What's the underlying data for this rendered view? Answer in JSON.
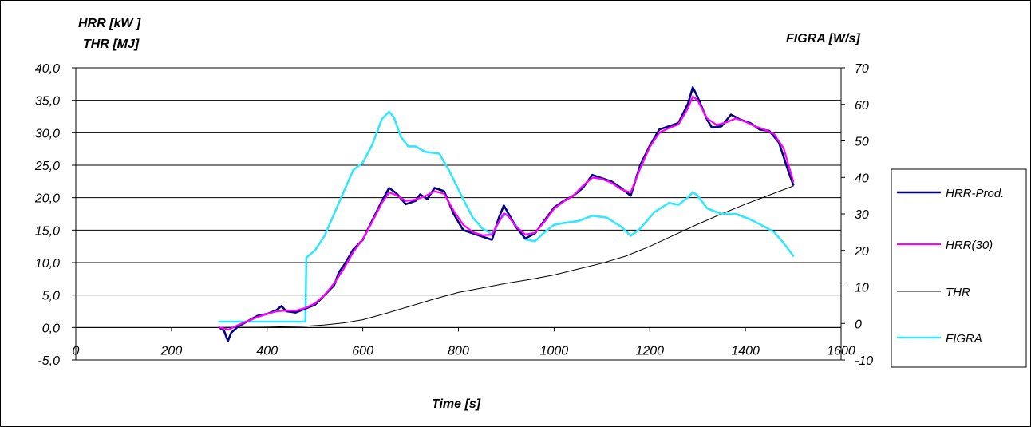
{
  "chart_data": {
    "type": "line",
    "title": "",
    "xlabel": "Time [s]",
    "ylabel_left": [
      "HRR [kW ]",
      "THR [MJ]"
    ],
    "ylabel_right": "FIGRA [W/s]",
    "xlim": [
      0,
      1600
    ],
    "ylim_left": [
      -5,
      40
    ],
    "ylim_right": [
      -10,
      70
    ],
    "x_ticks": [
      "0",
      "200",
      "400",
      "600",
      "800",
      "1000",
      "1200",
      "1400",
      "1600"
    ],
    "y_left_ticks": [
      "-5,0",
      "0,0",
      "5,0",
      "10,0",
      "15,0",
      "20,0",
      "25,0",
      "30,0",
      "35,0",
      "40,0"
    ],
    "y_right_ticks": [
      "-10",
      "0",
      "10",
      "20",
      "30",
      "40",
      "50",
      "60",
      "70"
    ],
    "grid": "horizontal",
    "legend_position": "right",
    "series": [
      {
        "name": "HRR-Prod.",
        "axis": "left",
        "color": "#000080",
        "points": [
          [
            300,
            0.0
          ],
          [
            310,
            -0.5
          ],
          [
            318,
            -2.1
          ],
          [
            325,
            -0.8
          ],
          [
            340,
            0.2
          ],
          [
            360,
            1.0
          ],
          [
            380,
            1.8
          ],
          [
            400,
            2.1
          ],
          [
            420,
            2.7
          ],
          [
            430,
            3.3
          ],
          [
            440,
            2.5
          ],
          [
            460,
            2.3
          ],
          [
            480,
            2.9
          ],
          [
            500,
            3.5
          ],
          [
            520,
            5.0
          ],
          [
            540,
            6.5
          ],
          [
            550,
            8.5
          ],
          [
            560,
            9.5
          ],
          [
            580,
            12.0
          ],
          [
            600,
            13.5
          ],
          [
            620,
            16.5
          ],
          [
            640,
            19.5
          ],
          [
            655,
            21.5
          ],
          [
            670,
            20.7
          ],
          [
            690,
            19.0
          ],
          [
            710,
            19.5
          ],
          [
            720,
            20.5
          ],
          [
            735,
            19.8
          ],
          [
            750,
            21.5
          ],
          [
            770,
            21.0
          ],
          [
            790,
            17.5
          ],
          [
            810,
            15.0
          ],
          [
            830,
            14.5
          ],
          [
            850,
            14.0
          ],
          [
            870,
            13.5
          ],
          [
            885,
            17.0
          ],
          [
            895,
            18.8
          ],
          [
            905,
            17.5
          ],
          [
            920,
            15.5
          ],
          [
            940,
            13.7
          ],
          [
            960,
            14.5
          ],
          [
            980,
            16.5
          ],
          [
            1000,
            18.5
          ],
          [
            1020,
            19.5
          ],
          [
            1040,
            20.3
          ],
          [
            1060,
            21.5
          ],
          [
            1080,
            23.5
          ],
          [
            1100,
            23.0
          ],
          [
            1120,
            22.5
          ],
          [
            1140,
            21.5
          ],
          [
            1160,
            20.3
          ],
          [
            1180,
            25.0
          ],
          [
            1200,
            28.0
          ],
          [
            1220,
            30.5
          ],
          [
            1240,
            31.0
          ],
          [
            1260,
            31.5
          ],
          [
            1280,
            34.5
          ],
          [
            1290,
            37.0
          ],
          [
            1300,
            35.5
          ],
          [
            1320,
            32.0
          ],
          [
            1330,
            30.8
          ],
          [
            1350,
            31.0
          ],
          [
            1370,
            32.8
          ],
          [
            1390,
            32.0
          ],
          [
            1410,
            31.5
          ],
          [
            1430,
            30.5
          ],
          [
            1450,
            30.3
          ],
          [
            1470,
            28.5
          ],
          [
            1490,
            24.0
          ],
          [
            1500,
            22.0
          ]
        ]
      },
      {
        "name": "HRR(30)",
        "axis": "left",
        "color": "#ff00ff",
        "points": [
          [
            300,
            0.0
          ],
          [
            320,
            -0.3
          ],
          [
            340,
            0.4
          ],
          [
            360,
            1.0
          ],
          [
            380,
            1.6
          ],
          [
            400,
            2.1
          ],
          [
            420,
            2.5
          ],
          [
            440,
            2.6
          ],
          [
            460,
            2.6
          ],
          [
            480,
            3.0
          ],
          [
            500,
            3.7
          ],
          [
            520,
            5.0
          ],
          [
            540,
            6.8
          ],
          [
            560,
            9.0
          ],
          [
            580,
            11.6
          ],
          [
            600,
            13.6
          ],
          [
            620,
            16.3
          ],
          [
            640,
            19.2
          ],
          [
            655,
            20.8
          ],
          [
            670,
            20.4
          ],
          [
            690,
            19.5
          ],
          [
            710,
            19.7
          ],
          [
            730,
            20.2
          ],
          [
            750,
            21.0
          ],
          [
            770,
            20.6
          ],
          [
            790,
            18.0
          ],
          [
            810,
            15.8
          ],
          [
            830,
            14.7
          ],
          [
            850,
            14.2
          ],
          [
            870,
            14.3
          ],
          [
            885,
            16.3
          ],
          [
            895,
            17.6
          ],
          [
            905,
            17.1
          ],
          [
            920,
            15.6
          ],
          [
            940,
            14.3
          ],
          [
            960,
            14.6
          ],
          [
            980,
            16.3
          ],
          [
            1000,
            18.3
          ],
          [
            1020,
            19.4
          ],
          [
            1040,
            20.3
          ],
          [
            1060,
            21.8
          ],
          [
            1080,
            23.1
          ],
          [
            1100,
            22.9
          ],
          [
            1120,
            22.3
          ],
          [
            1140,
            21.3
          ],
          [
            1160,
            20.8
          ],
          [
            1180,
            24.5
          ],
          [
            1200,
            27.8
          ],
          [
            1220,
            30.0
          ],
          [
            1240,
            30.7
          ],
          [
            1260,
            31.3
          ],
          [
            1280,
            33.8
          ],
          [
            1290,
            35.6
          ],
          [
            1300,
            35.0
          ],
          [
            1320,
            32.2
          ],
          [
            1340,
            31.2
          ],
          [
            1360,
            31.6
          ],
          [
            1380,
            32.2
          ],
          [
            1400,
            31.7
          ],
          [
            1420,
            31.0
          ],
          [
            1440,
            30.5
          ],
          [
            1460,
            29.8
          ],
          [
            1480,
            27.6
          ],
          [
            1500,
            22.5
          ]
        ]
      },
      {
        "name": "THR",
        "axis": "left",
        "color": "#000000",
        "points": [
          [
            300,
            0.0
          ],
          [
            400,
            0.05
          ],
          [
            480,
            0.2
          ],
          [
            520,
            0.4
          ],
          [
            560,
            0.7
          ],
          [
            600,
            1.2
          ],
          [
            650,
            2.2
          ],
          [
            700,
            3.3
          ],
          [
            750,
            4.4
          ],
          [
            800,
            5.4
          ],
          [
            850,
            6.1
          ],
          [
            900,
            6.8
          ],
          [
            950,
            7.4
          ],
          [
            1000,
            8.1
          ],
          [
            1050,
            9.0
          ],
          [
            1100,
            9.9
          ],
          [
            1150,
            11.0
          ],
          [
            1200,
            12.5
          ],
          [
            1250,
            14.2
          ],
          [
            1300,
            15.9
          ],
          [
            1350,
            17.5
          ],
          [
            1400,
            19.0
          ],
          [
            1450,
            20.4
          ],
          [
            1500,
            21.8
          ]
        ]
      },
      {
        "name": "FIGRA",
        "axis": "right",
        "color": "#33e6ff",
        "points": [
          [
            300,
            0.5
          ],
          [
            480,
            0.5
          ],
          [
            482,
            18.0
          ],
          [
            500,
            20.0
          ],
          [
            520,
            24.0
          ],
          [
            540,
            30.0
          ],
          [
            560,
            36.0
          ],
          [
            580,
            42.0
          ],
          [
            600,
            44.0
          ],
          [
            620,
            49.0
          ],
          [
            640,
            56.0
          ],
          [
            655,
            58.0
          ],
          [
            665,
            56.5
          ],
          [
            680,
            51.0
          ],
          [
            695,
            48.5
          ],
          [
            710,
            48.5
          ],
          [
            730,
            47.0
          ],
          [
            760,
            46.5
          ],
          [
            780,
            42.0
          ],
          [
            810,
            34.0
          ],
          [
            830,
            29.0
          ],
          [
            850,
            26.0
          ],
          [
            870,
            24.5
          ],
          [
            890,
            29.0
          ],
          [
            900,
            30.0
          ],
          [
            920,
            27.0
          ],
          [
            940,
            23.0
          ],
          [
            960,
            22.5
          ],
          [
            980,
            25.0
          ],
          [
            1000,
            27.0
          ],
          [
            1020,
            27.5
          ],
          [
            1050,
            28.0
          ],
          [
            1080,
            29.5
          ],
          [
            1110,
            29.0
          ],
          [
            1140,
            26.5
          ],
          [
            1160,
            24.0
          ],
          [
            1180,
            26.0
          ],
          [
            1210,
            30.5
          ],
          [
            1240,
            33.0
          ],
          [
            1260,
            32.5
          ],
          [
            1280,
            34.5
          ],
          [
            1290,
            36.0
          ],
          [
            1300,
            35.0
          ],
          [
            1320,
            31.5
          ],
          [
            1350,
            30.0
          ],
          [
            1380,
            30.0
          ],
          [
            1410,
            28.5
          ],
          [
            1440,
            26.5
          ],
          [
            1460,
            25.0
          ],
          [
            1480,
            22.0
          ],
          [
            1500,
            18.5
          ]
        ]
      }
    ]
  }
}
